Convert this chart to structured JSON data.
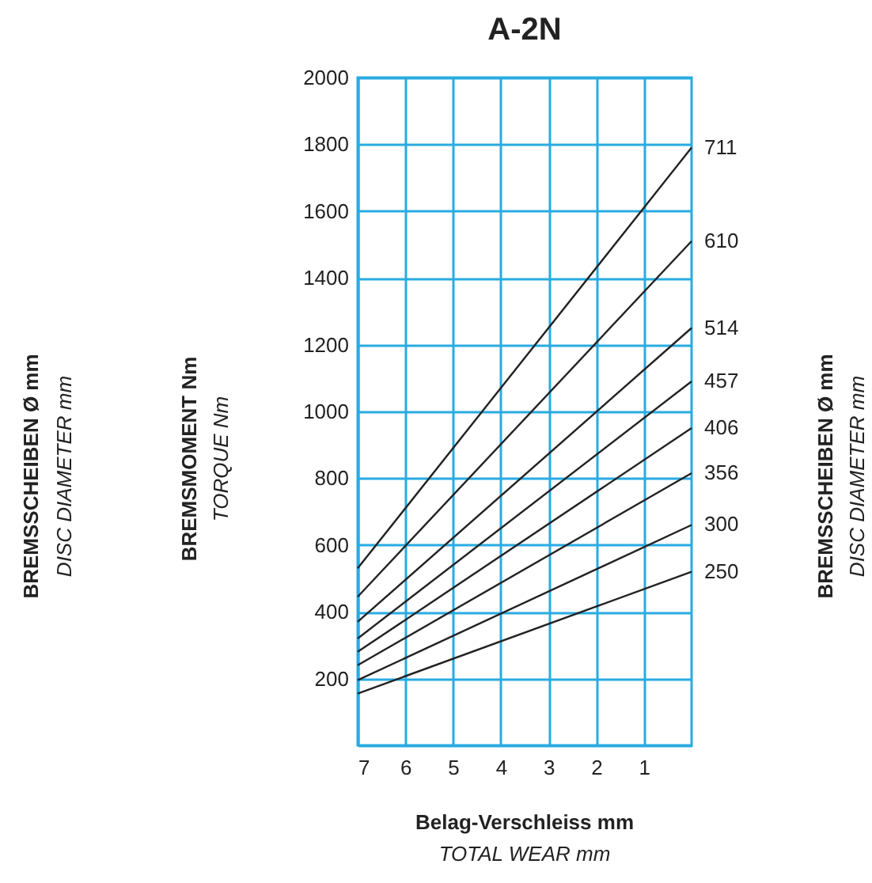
{
  "chart_data": {
    "type": "line",
    "title": "A-2N",
    "xlabel": "Belag-Verschleiss mm\nTOTAL WEAR mm",
    "ylabel": "BREMSMOMENT Nm\nTORQUE Nm",
    "annotations": [
      "BREMSSCHEIBEN Ø mm\nDISC DIAMETER mm",
      "BREMSSCHEIBEN Ø mm\nDISC DIAMETER mm"
    ],
    "x": [
      7,
      0
    ],
    "series": [
      {
        "name": "711",
        "color": "#222222",
        "values": [
          530,
          1790
        ]
      },
      {
        "name": "610",
        "color": "#222222",
        "values": [
          445,
          1510
        ]
      },
      {
        "name": "514",
        "color": "#222222",
        "values": [
          370,
          1250
        ]
      },
      {
        "name": "457",
        "color": "#222222",
        "values": [
          320,
          1090
        ]
      },
      {
        "name": "406",
        "color": "#222222",
        "values": [
          280,
          950
        ]
      },
      {
        "name": "356",
        "color": "#222222",
        "values": [
          240,
          815
        ]
      },
      {
        "name": "300",
        "color": "#222222",
        "values": [
          195,
          660
        ]
      },
      {
        "name": "250",
        "color": "#222222",
        "values": [
          155,
          520
        ]
      }
    ],
    "xlim": [
      7,
      0
    ],
    "xticks": [
      7,
      6,
      5,
      4,
      3,
      2,
      1
    ],
    "ylim": [
      0,
      2000
    ],
    "yticks": [
      200,
      400,
      600,
      800,
      1000,
      1200,
      1400,
      1600,
      1800,
      2000
    ],
    "grid": true,
    "legend": false,
    "marker": "none",
    "line_style": "solid"
  }
}
